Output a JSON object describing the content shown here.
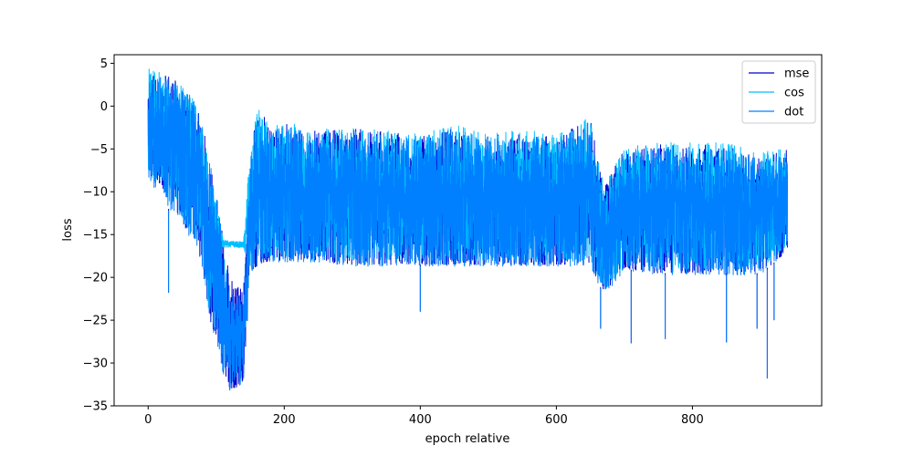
{
  "chart_data": {
    "type": "line",
    "title": "",
    "xlabel": "epoch relative",
    "ylabel": "loss",
    "xlim": [
      -50,
      990
    ],
    "ylim": [
      -35,
      6
    ],
    "x_ticks": [
      0,
      200,
      400,
      600,
      800
    ],
    "x_tick_labels": [
      "0",
      "200",
      "400",
      "600",
      "800"
    ],
    "y_ticks": [
      5,
      0,
      -5,
      -10,
      -15,
      -20,
      -25,
      -30,
      -35
    ],
    "y_tick_labels": [
      "5",
      "0",
      "−5",
      "−10",
      "−15",
      "−20",
      "−25",
      "−30",
      "−35"
    ],
    "grid": false,
    "legend_position": "top-right",
    "series": [
      {
        "name": "mse",
        "color": "#0000cd",
        "x": [
          0,
          10,
          20,
          30,
          40,
          50,
          60,
          70,
          80,
          90,
          100,
          110,
          120,
          130,
          140,
          150,
          160,
          180,
          200,
          250,
          300,
          350,
          400,
          450,
          500,
          550,
          600,
          650,
          670,
          700,
          750,
          800,
          850,
          900,
          940
        ],
        "upper": [
          4.5,
          4.0,
          3.8,
          3.5,
          3.0,
          2.2,
          1.5,
          0.5,
          -2.0,
          -6.0,
          -10.0,
          -15.0,
          -20.0,
          -21.0,
          -21.5,
          -5.0,
          0.2,
          -2.5,
          -2.0,
          -3.0,
          -2.5,
          -3.0,
          -3.5,
          -2.5,
          -3.5,
          -3.0,
          -3.5,
          -1.5,
          -9.5,
          -5.0,
          -4.5,
          -4.5,
          -4.5,
          -6.0,
          -5.0
        ],
        "lower": [
          -8.0,
          -9.5,
          -9.0,
          -12.0,
          -12.0,
          -13.5,
          -15.0,
          -15.5,
          -19.0,
          -25.0,
          -27.0,
          -31.0,
          -33.0,
          -33.0,
          -32.0,
          -20.0,
          -18.5,
          -18.0,
          -18.0,
          -18.0,
          -18.5,
          -18.5,
          -18.5,
          -18.5,
          -18.5,
          -18.5,
          -18.5,
          -18.5,
          -22.0,
          -19.0,
          -19.5,
          -19.5,
          -19.5,
          -19.5,
          -17.0
        ],
        "spikes": [
          [
            30,
            -21.8
          ],
          [
            120,
            -31.8
          ],
          [
            400,
            -24.0
          ],
          [
            665,
            -26.0
          ],
          [
            710,
            -27.7
          ],
          [
            760,
            -27.2
          ],
          [
            850,
            -27.6
          ],
          [
            895,
            -26.0
          ],
          [
            910,
            -31.8
          ],
          [
            920,
            -25.0
          ]
        ]
      },
      {
        "name": "cos",
        "color": "#00bfff",
        "x": [
          0,
          10,
          20,
          30,
          40,
          50,
          60,
          70,
          80,
          90,
          100,
          110,
          120,
          130,
          140,
          150,
          160,
          180,
          200,
          250,
          300,
          350,
          400,
          450,
          500,
          550,
          600,
          650,
          670,
          700,
          750,
          800,
          850,
          900,
          940
        ],
        "upper": [
          4.6,
          4.1,
          3.9,
          3.6,
          3.1,
          2.3,
          1.6,
          0.6,
          -1.8,
          -5.8,
          -10.0,
          -15.5,
          -15.8,
          -15.8,
          -15.8,
          -4.5,
          0.4,
          -2.2,
          -1.8,
          -2.8,
          -2.2,
          -2.8,
          -3.2,
          -2.2,
          -3.2,
          -2.8,
          -3.2,
          -1.2,
          -9.2,
          -4.8,
          -4.2,
          -4.2,
          -4.2,
          -5.5,
          -4.6
        ],
        "lower": [
          -7.5,
          -9.0,
          -8.5,
          -11.5,
          -11.5,
          -13.0,
          -14.5,
          -15.0,
          -18.5,
          -24.5,
          -16.5,
          -16.5,
          -16.5,
          -16.5,
          -16.5,
          -19.5,
          -18.0,
          -17.5,
          -17.5,
          -17.5,
          -18.0,
          -18.0,
          -18.0,
          -18.0,
          -18.0,
          -18.0,
          -18.0,
          -18.0,
          -21.5,
          -18.5,
          -19.0,
          -19.0,
          -19.0,
          -19.0,
          -16.5
        ]
      },
      {
        "name": "dot",
        "color": "#0080ff",
        "x": [
          0,
          10,
          20,
          30,
          40,
          50,
          60,
          70,
          80,
          90,
          100,
          110,
          120,
          130,
          140,
          150,
          160,
          180,
          200,
          250,
          300,
          350,
          400,
          450,
          500,
          550,
          600,
          650,
          670,
          700,
          750,
          800,
          850,
          900,
          940
        ],
        "upper": [
          4.4,
          3.9,
          3.7,
          3.4,
          2.9,
          2.1,
          1.4,
          0.4,
          -2.2,
          -6.2,
          -10.5,
          -15.5,
          -20.5,
          -21.5,
          -22.0,
          -5.5,
          0.0,
          -2.8,
          -2.3,
          -3.3,
          -2.8,
          -3.3,
          -3.8,
          -2.8,
          -3.8,
          -3.3,
          -3.8,
          -1.8,
          -9.8,
          -5.3,
          -4.8,
          -4.8,
          -4.8,
          -6.3,
          -5.3
        ],
        "lower": [
          -8.2,
          -9.7,
          -9.2,
          -12.2,
          -12.2,
          -13.7,
          -15.2,
          -15.7,
          -19.2,
          -25.2,
          -27.2,
          -31.2,
          -33.2,
          -33.2,
          -32.2,
          -20.2,
          -18.7,
          -18.2,
          -18.2,
          -18.2,
          -18.7,
          -18.7,
          -18.7,
          -18.7,
          -18.7,
          -18.7,
          -18.7,
          -18.7,
          -22.2,
          -19.2,
          -19.7,
          -19.7,
          -19.7,
          -19.7,
          -17.2
        ],
        "spikes": [
          [
            30,
            -21.8
          ],
          [
            120,
            -31.8
          ],
          [
            400,
            -24.0
          ],
          [
            665,
            -26.0
          ],
          [
            710,
            -27.7
          ],
          [
            760,
            -27.2
          ],
          [
            850,
            -27.6
          ],
          [
            895,
            -26.0
          ],
          [
            910,
            -31.8
          ],
          [
            920,
            -25.0
          ]
        ]
      }
    ]
  }
}
